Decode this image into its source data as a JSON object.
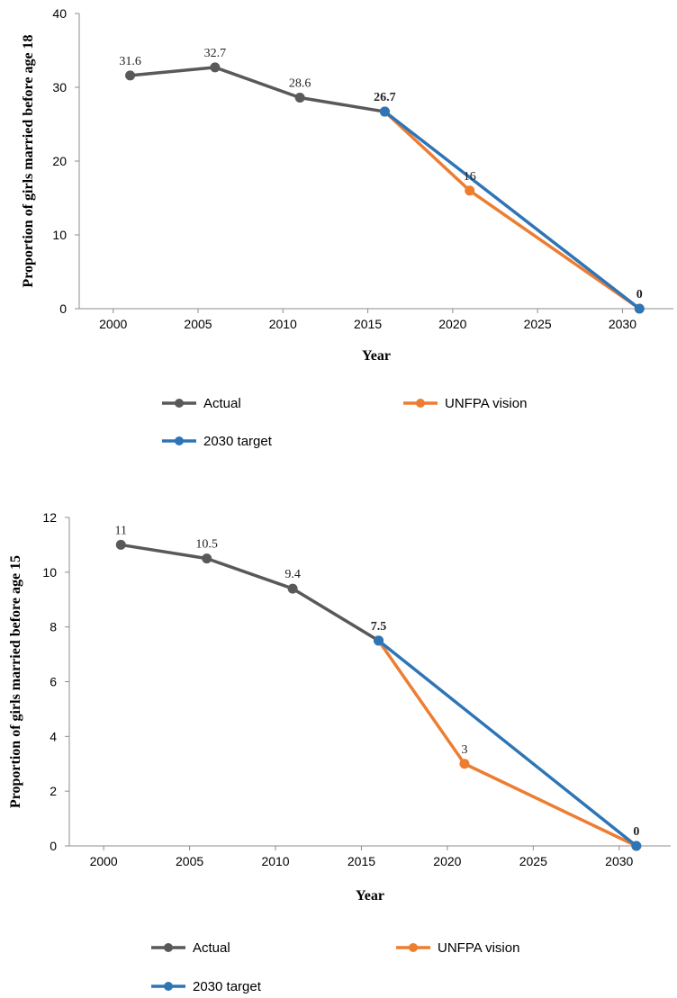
{
  "colors": {
    "actual": "#595959",
    "unfpa": "#ED7D31",
    "target": "#2E75B6",
    "axis": "#8C8C8C"
  },
  "chart_data": [
    {
      "type": "line",
      "xlabel": "Year",
      "ylabel": "Proportion of girls married before age 18",
      "xlim": [
        1998,
        2033
      ],
      "ylim": [
        0,
        40
      ],
      "xticks": [
        2000,
        2005,
        2010,
        2015,
        2020,
        2025,
        2030
      ],
      "yticks": [
        0,
        10,
        20,
        30,
        40
      ],
      "grid": false,
      "legend_position": "bottom",
      "series": [
        {
          "name": "Actual",
          "color_key": "actual",
          "points": [
            {
              "x": 2001,
              "y": 31.6,
              "label": "31.6"
            },
            {
              "x": 2006,
              "y": 32.7,
              "label": "32.7"
            },
            {
              "x": 2011,
              "y": 28.6,
              "label": "28.6"
            },
            {
              "x": 2016,
              "y": 26.7,
              "label": "26.7"
            }
          ]
        },
        {
          "name": "UNFPA vision",
          "color_key": "unfpa",
          "points": [
            {
              "x": 2016,
              "y": 26.7,
              "label": ""
            },
            {
              "x": 2021,
              "y": 16,
              "label": "16"
            },
            {
              "x": 2031,
              "y": 0,
              "label": ""
            }
          ]
        },
        {
          "name": "2030 target",
          "color_key": "target",
          "points": [
            {
              "x": 2016,
              "y": 26.7,
              "label": ""
            },
            {
              "x": 2031,
              "y": 0,
              "label": "0"
            }
          ]
        }
      ]
    },
    {
      "type": "line",
      "xlabel": "Year",
      "ylabel": "Proportion of girls married before age 15",
      "xlim": [
        1998,
        2033
      ],
      "ylim": [
        0,
        12
      ],
      "xticks": [
        2000,
        2005,
        2010,
        2015,
        2020,
        2025,
        2030
      ],
      "yticks": [
        0,
        2,
        4,
        6,
        8,
        10,
        12
      ],
      "grid": false,
      "legend_position": "bottom",
      "series": [
        {
          "name": "Actual",
          "color_key": "actual",
          "points": [
            {
              "x": 2001,
              "y": 11,
              "label": "11"
            },
            {
              "x": 2006,
              "y": 10.5,
              "label": "10.5"
            },
            {
              "x": 2011,
              "y": 9.4,
              "label": "9.4"
            },
            {
              "x": 2016,
              "y": 7.5,
              "label": "7.5"
            }
          ]
        },
        {
          "name": "UNFPA vision",
          "color_key": "unfpa",
          "points": [
            {
              "x": 2016,
              "y": 7.5,
              "label": ""
            },
            {
              "x": 2021,
              "y": 3,
              "label": "3"
            },
            {
              "x": 2031,
              "y": 0,
              "label": ""
            }
          ]
        },
        {
          "name": "2030 target",
          "color_key": "target",
          "points": [
            {
              "x": 2016,
              "y": 7.5,
              "label": ""
            },
            {
              "x": 2031,
              "y": 0,
              "label": "0"
            }
          ]
        }
      ]
    }
  ]
}
